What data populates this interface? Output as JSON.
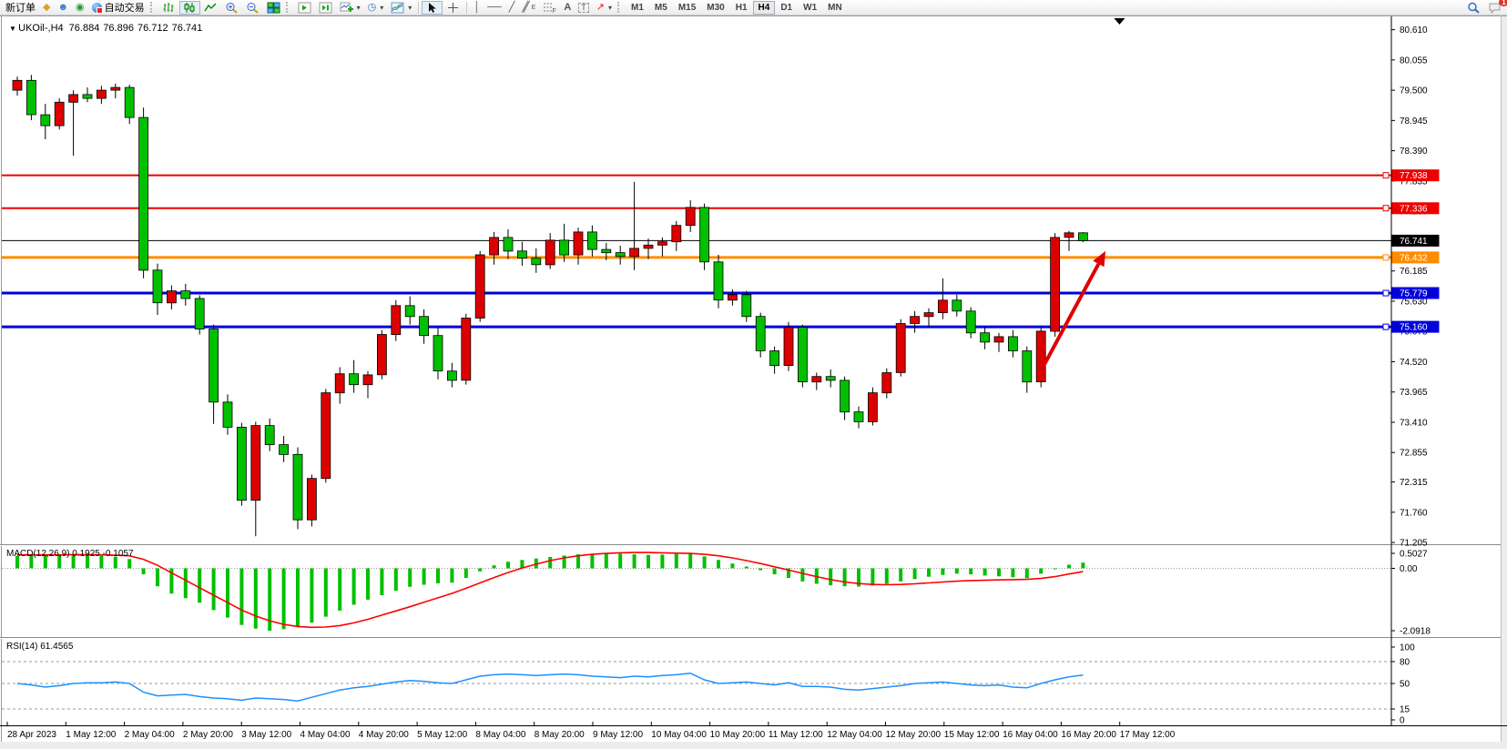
{
  "toolbar": {
    "new_order_label": "新订单",
    "autotrading_label": "自动交易",
    "timeframes": [
      "M1",
      "M5",
      "M15",
      "M30",
      "H1",
      "H4",
      "D1",
      "W1",
      "MN"
    ],
    "active_timeframe": "H4",
    "chat_badge_count": "1"
  },
  "chart": {
    "title": {
      "symbol_period": "UKOil-,H4",
      "open": "76.884",
      "high": "76.896",
      "low": "76.712",
      "close": "76.741"
    },
    "indicator_labels": {
      "macd": "MACD(12,26,9) 0.1925 -0.1057",
      "rsi": "RSI(14) 61.4565"
    }
  },
  "chart_data": {
    "type": "candlestick",
    "symbol": "UKOil",
    "period": "H4",
    "colors": {
      "up": "#dd0000",
      "down": "#00c000",
      "macd_hist": "#00c000",
      "macd_signal": "#ff0000",
      "rsi_line": "#1e90ff",
      "red_line": "#ee0000",
      "orange_line": "#ff8c00",
      "blue_line": "#0000dd",
      "current": "#000000"
    },
    "price_axis_labels": [
      "80.610",
      "80.055",
      "79.500",
      "78.945",
      "78.390",
      "77.835",
      "77.280",
      "76.725",
      "76.185",
      "75.630",
      "75.075",
      "74.520",
      "73.965",
      "73.410",
      "72.855",
      "72.315",
      "71.760",
      "71.205"
    ],
    "price_axis_values": [
      80.61,
      80.055,
      79.5,
      78.945,
      78.39,
      77.835,
      77.28,
      76.725,
      76.185,
      75.63,
      75.075,
      74.52,
      73.965,
      73.41,
      72.855,
      72.315,
      71.76,
      71.205
    ],
    "time_labels": [
      "28 Apr 2023",
      "1 May 12:00",
      "2 May 04:00",
      "2 May 20:00",
      "3 May 12:00",
      "4 May 04:00",
      "4 May 20:00",
      "5 May 12:00",
      "8 May 04:00",
      "8 May 20:00",
      "9 May 12:00",
      "10 May 04:00",
      "10 May 20:00",
      "11 May 12:00",
      "12 May 04:00",
      "12 May 20:00",
      "15 May 12:00",
      "16 May 04:00",
      "16 May 20:00",
      "17 May 12:00"
    ],
    "candles": [
      [
        79.5,
        79.75,
        79.4,
        79.68
      ],
      [
        79.68,
        79.78,
        78.95,
        79.05
      ],
      [
        79.05,
        79.25,
        78.6,
        78.85
      ],
      [
        78.85,
        79.35,
        78.78,
        79.28
      ],
      [
        79.28,
        79.5,
        78.3,
        79.42
      ],
      [
        79.42,
        79.55,
        79.28,
        79.35
      ],
      [
        79.35,
        79.58,
        79.25,
        79.5
      ],
      [
        79.5,
        79.62,
        79.35,
        79.55
      ],
      [
        79.55,
        79.6,
        78.88,
        79.0
      ],
      [
        79.0,
        79.18,
        76.05,
        76.2
      ],
      [
        76.2,
        76.32,
        75.38,
        75.6
      ],
      [
        75.6,
        75.92,
        75.48,
        75.82
      ],
      [
        75.82,
        75.95,
        75.55,
        75.68
      ],
      [
        75.68,
        75.74,
        75.02,
        75.12
      ],
      [
        75.12,
        75.2,
        73.38,
        73.78
      ],
      [
        73.78,
        73.92,
        73.18,
        73.32
      ],
      [
        73.32,
        73.4,
        71.88,
        71.98
      ],
      [
        71.98,
        73.42,
        71.32,
        73.35
      ],
      [
        73.35,
        73.48,
        72.88,
        73.0
      ],
      [
        73.0,
        73.16,
        72.68,
        72.82
      ],
      [
        72.82,
        72.95,
        71.45,
        71.62
      ],
      [
        71.62,
        72.45,
        71.5,
        72.38
      ],
      [
        72.38,
        74.02,
        72.3,
        73.95
      ],
      [
        73.95,
        74.42,
        73.75,
        74.3
      ],
      [
        74.3,
        74.55,
        73.95,
        74.1
      ],
      [
        74.1,
        74.35,
        73.85,
        74.28
      ],
      [
        74.28,
        75.1,
        74.2,
        75.02
      ],
      [
        75.02,
        75.65,
        74.9,
        75.55
      ],
      [
        75.55,
        75.72,
        75.2,
        75.35
      ],
      [
        75.35,
        75.48,
        74.85,
        75.0
      ],
      [
        75.0,
        75.15,
        74.2,
        74.35
      ],
      [
        74.35,
        74.5,
        74.05,
        74.18
      ],
      [
        74.18,
        75.4,
        74.1,
        75.32
      ],
      [
        75.32,
        76.55,
        75.25,
        76.48
      ],
      [
        76.48,
        76.9,
        76.3,
        76.8
      ],
      [
        76.8,
        76.95,
        76.4,
        76.55
      ],
      [
        76.55,
        76.72,
        76.28,
        76.42
      ],
      [
        76.42,
        76.6,
        76.15,
        76.3
      ],
      [
        76.3,
        76.88,
        76.22,
        76.75
      ],
      [
        76.75,
        77.05,
        76.35,
        76.48
      ],
      [
        76.48,
        76.98,
        76.3,
        76.9
      ],
      [
        76.9,
        77.02,
        76.45,
        76.58
      ],
      [
        76.58,
        76.7,
        76.38,
        76.52
      ],
      [
        76.52,
        76.65,
        76.3,
        76.45
      ],
      [
        76.45,
        77.82,
        76.2,
        76.6
      ],
      [
        76.6,
        76.78,
        76.4,
        76.66
      ],
      [
        76.66,
        76.8,
        76.45,
        76.72
      ],
      [
        76.72,
        77.1,
        76.55,
        77.02
      ],
      [
        77.02,
        77.48,
        76.9,
        77.35
      ],
      [
        77.35,
        77.42,
        76.2,
        76.35
      ],
      [
        76.35,
        76.48,
        75.5,
        75.65
      ],
      [
        75.65,
        75.85,
        75.55,
        75.75
      ],
      [
        75.75,
        75.82,
        75.25,
        75.35
      ],
      [
        75.35,
        75.42,
        74.6,
        74.72
      ],
      [
        74.72,
        74.8,
        74.3,
        74.45
      ],
      [
        74.45,
        75.25,
        74.35,
        75.15
      ],
      [
        75.15,
        75.2,
        74.05,
        74.15
      ],
      [
        74.15,
        74.32,
        74.0,
        74.25
      ],
      [
        74.25,
        74.38,
        74.05,
        74.18
      ],
      [
        74.18,
        74.25,
        73.45,
        73.6
      ],
      [
        73.6,
        73.7,
        73.3,
        73.42
      ],
      [
        73.42,
        74.05,
        73.35,
        73.95
      ],
      [
        73.95,
        74.4,
        73.85,
        74.32
      ],
      [
        74.32,
        75.3,
        74.25,
        75.22
      ],
      [
        75.22,
        75.45,
        75.05,
        75.35
      ],
      [
        75.35,
        75.5,
        75.15,
        75.42
      ],
      [
        75.42,
        76.05,
        75.3,
        75.65
      ],
      [
        75.65,
        75.75,
        75.35,
        75.45
      ],
      [
        75.45,
        75.52,
        74.95,
        75.05
      ],
      [
        75.05,
        75.15,
        74.75,
        74.88
      ],
      [
        74.88,
        75.05,
        74.7,
        74.98
      ],
      [
        74.98,
        75.1,
        74.6,
        74.72
      ],
      [
        74.72,
        74.8,
        73.95,
        74.15
      ],
      [
        74.15,
        75.15,
        74.05,
        75.08
      ],
      [
        75.08,
        76.88,
        74.98,
        76.8
      ],
      [
        76.8,
        76.92,
        76.55,
        76.884
      ],
      [
        76.884,
        76.896,
        76.712,
        76.741
      ]
    ],
    "hlines": [
      {
        "price": 77.938,
        "label": "77.938",
        "color": "#ee0000",
        "width": 2
      },
      {
        "price": 77.336,
        "label": "77.336",
        "color": "#ee0000",
        "width": 2
      },
      {
        "price": 76.432,
        "label": "76.432",
        "color": "#ff8c00",
        "width": 3
      },
      {
        "price": 75.779,
        "label": "75.779",
        "color": "#0000dd",
        "width": 3
      },
      {
        "price": 75.16,
        "label": "75.160",
        "color": "#0000dd",
        "width": 3
      }
    ],
    "current_price": {
      "price": 76.741,
      "label": "76.741"
    },
    "macd": {
      "hist": [
        0.42,
        0.45,
        0.43,
        0.44,
        0.46,
        0.45,
        0.42,
        0.39,
        0.31,
        -0.2,
        -0.6,
        -0.85,
        -1.0,
        -1.15,
        -1.4,
        -1.65,
        -1.9,
        -2.02,
        -2.09,
        -2.04,
        -1.96,
        -1.82,
        -1.62,
        -1.42,
        -1.22,
        -1.05,
        -0.9,
        -0.75,
        -0.62,
        -0.55,
        -0.5,
        -0.48,
        -0.32,
        -0.1,
        0.1,
        0.22,
        0.28,
        0.33,
        0.38,
        0.43,
        0.47,
        0.49,
        0.5,
        0.49,
        0.47,
        0.45,
        0.46,
        0.48,
        0.5,
        0.4,
        0.28,
        0.16,
        0.06,
        -0.06,
        -0.2,
        -0.32,
        -0.44,
        -0.52,
        -0.57,
        -0.6,
        -0.61,
        -0.58,
        -0.52,
        -0.44,
        -0.36,
        -0.28,
        -0.22,
        -0.18,
        -0.2,
        -0.24,
        -0.27,
        -0.3,
        -0.33,
        -0.18,
        -0.02,
        0.12,
        0.19
      ],
      "signal": [
        0.45,
        0.45,
        0.45,
        0.45,
        0.46,
        0.46,
        0.45,
        0.44,
        0.42,
        0.3,
        0.1,
        -0.15,
        -0.4,
        -0.65,
        -0.9,
        -1.15,
        -1.4,
        -1.6,
        -1.76,
        -1.88,
        -1.95,
        -1.98,
        -1.97,
        -1.92,
        -1.83,
        -1.71,
        -1.57,
        -1.43,
        -1.29,
        -1.14,
        -0.99,
        -0.84,
        -0.67,
        -0.49,
        -0.31,
        -0.14,
        0.01,
        0.14,
        0.26,
        0.35,
        0.42,
        0.47,
        0.5,
        0.52,
        0.53,
        0.53,
        0.52,
        0.51,
        0.5,
        0.47,
        0.42,
        0.35,
        0.26,
        0.16,
        0.05,
        -0.06,
        -0.17,
        -0.28,
        -0.38,
        -0.46,
        -0.51,
        -0.54,
        -0.55,
        -0.54,
        -0.52,
        -0.49,
        -0.46,
        -0.43,
        -0.41,
        -0.4,
        -0.39,
        -0.38,
        -0.37,
        -0.34,
        -0.28,
        -0.19,
        -0.11
      ],
      "axis": [
        {
          "v": 0.5027,
          "label": "0.5027"
        },
        {
          "v": 0.0,
          "label": "0.00"
        },
        {
          "v": -2.0918,
          "label": "-2.0918"
        }
      ]
    },
    "rsi": {
      "values": [
        50,
        48,
        45,
        47,
        50,
        51,
        51,
        52,
        50,
        38,
        33,
        34,
        35,
        32,
        30,
        29,
        27,
        30,
        29,
        28,
        26,
        31,
        36,
        41,
        44,
        46,
        49,
        52,
        54,
        53,
        51,
        50,
        55,
        60,
        62,
        63,
        62,
        61,
        62,
        63,
        62,
        60,
        59,
        58,
        60,
        59,
        61,
        62,
        64,
        55,
        50,
        51,
        52,
        50,
        48,
        51,
        46,
        46,
        45,
        42,
        41,
        43,
        45,
        47,
        50,
        51,
        52,
        50,
        48,
        47,
        48,
        45,
        44,
        50,
        55,
        59,
        61.5
      ],
      "levels": [
        80,
        50,
        15
      ],
      "axis": [
        {
          "v": 100,
          "label": "100"
        },
        {
          "v": 80,
          "label": "80"
        },
        {
          "v": 50,
          "label": "50"
        },
        {
          "v": 15,
          "label": "15"
        },
        {
          "v": 0,
          "label": "0"
        }
      ]
    },
    "arrow": {
      "from_index": 73.2,
      "from_price": 74.45,
      "to_index": 77.6,
      "to_price": 76.55
    },
    "shift_marker_index": 78.6
  }
}
